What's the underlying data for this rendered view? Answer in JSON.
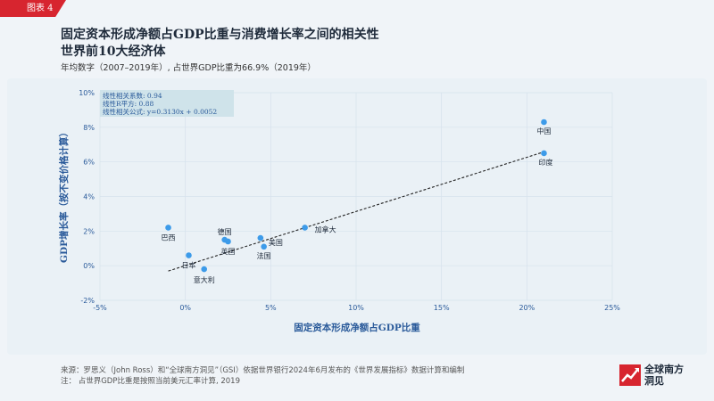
{
  "header": {
    "tag": "图表 4",
    "title_line1": "固定资本形成净额占GDP比重与消费增长率之间的相关性",
    "title_line2": "世界前10大经济体",
    "subtitle": "年均数字（2007–2019年）, 占世界GDP比重为66.9%（2019年）"
  },
  "footer": {
    "source": "来源：罗思义（John Ross）和“全球南方洞见”（GSI）依据世界银行2024年6月发布的《世界发展指标》数据计算和编制",
    "note": "注：    占世界GDP比重是按照当前美元汇率计算, 2019"
  },
  "logo": {
    "line1": "全球南方",
    "line2": "洞见"
  },
  "colors": {
    "accent": "#d7252f",
    "point": "#3d9be9",
    "axis_text": "#2a5a9a",
    "trend": "#222222"
  },
  "chart_data": {
    "type": "scatter",
    "xlabel": "固定资本形成净额占GDP比重",
    "ylabel": "GDP增长率（按不变价格计算）",
    "xlim": [
      -5,
      25
    ],
    "ylim": [
      -2,
      10
    ],
    "xticks": [
      "-5%",
      "0%",
      "5%",
      "10%",
      "15%",
      "20%",
      "25%"
    ],
    "yticks": [
      "-2%",
      "0%",
      "2%",
      "4%",
      "6%",
      "8%",
      "10%"
    ],
    "grid": true,
    "points": [
      {
        "label": "中国",
        "x": 21.0,
        "y": 8.3
      },
      {
        "label": "印度",
        "x": 21.0,
        "y": 6.5
      },
      {
        "label": "加拿大",
        "x": 7.0,
        "y": 2.2
      },
      {
        "label": "美国",
        "x": 4.4,
        "y": 1.6
      },
      {
        "label": "法国",
        "x": 4.6,
        "y": 1.1
      },
      {
        "label": "德国",
        "x": 2.3,
        "y": 1.5
      },
      {
        "label": "英国",
        "x": 2.5,
        "y": 1.4
      },
      {
        "label": "巴西",
        "x": -1.0,
        "y": 2.2
      },
      {
        "label": "日本",
        "x": 0.2,
        "y": 0.6
      },
      {
        "label": "意大利",
        "x": 1.1,
        "y": -0.2
      }
    ],
    "trendline": {
      "slope": 0.313,
      "intercept": 0.0052,
      "x_range": [
        -1.0,
        21.0
      ]
    },
    "stats": {
      "line1": "线性相关系数: 0.94",
      "line2": "线性R平方: 0.88",
      "line3": "线性相关公式: y=0.3130x + 0.0052"
    }
  }
}
